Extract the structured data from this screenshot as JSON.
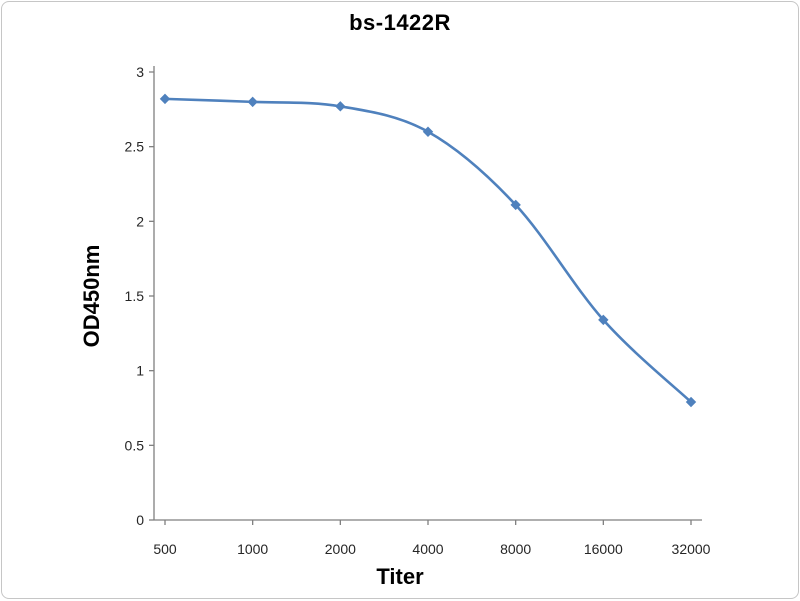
{
  "panel": {
    "background": "#ffffff",
    "border_color": "#c6c6c6"
  },
  "chart_data": {
    "type": "line",
    "title": "bs-1422R",
    "xlabel": "Titer",
    "ylabel": "OD450nm",
    "categories": [
      "500",
      "1000",
      "2000",
      "4000",
      "8000",
      "16000",
      "32000"
    ],
    "series": [
      {
        "name": "bs-1422R",
        "values": [
          2.82,
          2.8,
          2.77,
          2.6,
          2.11,
          1.34,
          0.79
        ]
      }
    ],
    "ylim": [
      0,
      3
    ],
    "yticks": [
      0,
      0.5,
      1,
      1.5,
      2,
      2.5,
      3
    ],
    "ytick_labels": [
      "0",
      "0.5",
      "1",
      "1.5",
      "2",
      "2.5",
      "3"
    ],
    "grid": false,
    "legend": "none",
    "marker": "diamond",
    "line_color": "#4f81bd",
    "axis_color": "#7f7f7f",
    "tick_label_color": "#262626"
  }
}
